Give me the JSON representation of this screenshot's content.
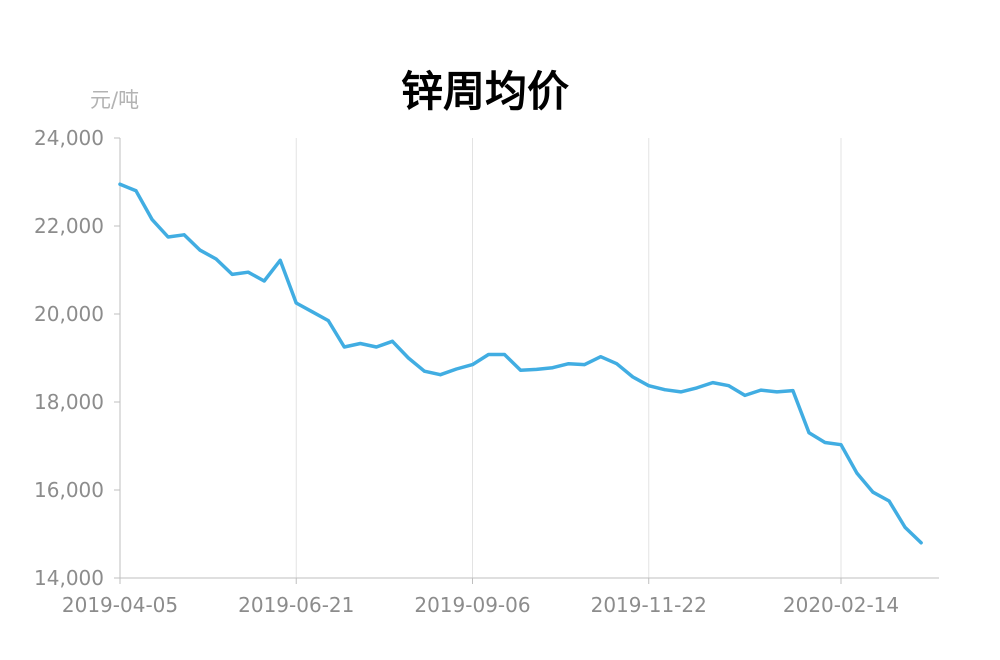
{
  "chart_data": {
    "type": "line",
    "title": "锌周均价",
    "ylabel": "元/吨",
    "xlabel": "",
    "ylim": [
      14000,
      24000
    ],
    "y_ticks": [
      "14,000",
      "16,000",
      "18,000",
      "20,000",
      "22,000",
      "24,000"
    ],
    "y_tick_values": [
      14000,
      16000,
      18000,
      20000,
      22000,
      24000
    ],
    "x_ticks": [
      "2019-04-05",
      "2019-06-21",
      "2019-09-06",
      "2019-11-22",
      "2020-02-14"
    ],
    "grid": "vertical",
    "legend": "none",
    "series": [
      {
        "color": "#41ade2",
        "points": [
          [
            "2019-04-05",
            22950
          ],
          [
            "2019-04-12",
            22800
          ],
          [
            "2019-04-19",
            22150
          ],
          [
            "2019-04-26",
            21750
          ],
          [
            "2019-05-03",
            21800
          ],
          [
            "2019-05-10",
            21450
          ],
          [
            "2019-05-17",
            21250
          ],
          [
            "2019-05-24",
            20900
          ],
          [
            "2019-05-31",
            20950
          ],
          [
            "2019-06-07",
            20750
          ],
          [
            "2019-06-14",
            21220
          ],
          [
            "2019-06-21",
            20250
          ],
          [
            "2019-06-28",
            20050
          ],
          [
            "2019-07-05",
            19850
          ],
          [
            "2019-07-12",
            19250
          ],
          [
            "2019-07-19",
            19330
          ],
          [
            "2019-07-26",
            19250
          ],
          [
            "2019-08-02",
            19380
          ],
          [
            "2019-08-09",
            19000
          ],
          [
            "2019-08-16",
            18700
          ],
          [
            "2019-08-23",
            18620
          ],
          [
            "2019-08-30",
            18750
          ],
          [
            "2019-09-06",
            18850
          ],
          [
            "2019-09-13",
            19080
          ],
          [
            "2019-09-20",
            19080
          ],
          [
            "2019-09-27",
            18720
          ],
          [
            "2019-10-04",
            18740
          ],
          [
            "2019-10-11",
            18780
          ],
          [
            "2019-10-18",
            18870
          ],
          [
            "2019-10-25",
            18850
          ],
          [
            "2019-11-01",
            19030
          ],
          [
            "2019-11-08",
            18870
          ],
          [
            "2019-11-15",
            18570
          ],
          [
            "2019-11-22",
            18370
          ],
          [
            "2019-11-29",
            18280
          ],
          [
            "2019-12-06",
            18230
          ],
          [
            "2019-12-13",
            18320
          ],
          [
            "2019-12-20",
            18440
          ],
          [
            "2019-12-27",
            18370
          ],
          [
            "2020-01-03",
            18150
          ],
          [
            "2020-01-10",
            18270
          ],
          [
            "2020-01-17",
            18230
          ],
          [
            "2020-01-24",
            18260
          ],
          [
            "2020-01-31",
            17300
          ],
          [
            "2020-02-07",
            17080
          ],
          [
            "2020-02-14",
            17030
          ],
          [
            "2020-02-21",
            16380
          ],
          [
            "2020-02-28",
            15950
          ],
          [
            "2020-03-06",
            15750
          ],
          [
            "2020-03-13",
            15150
          ],
          [
            "2020-03-20",
            14800
          ]
        ]
      }
    ]
  }
}
